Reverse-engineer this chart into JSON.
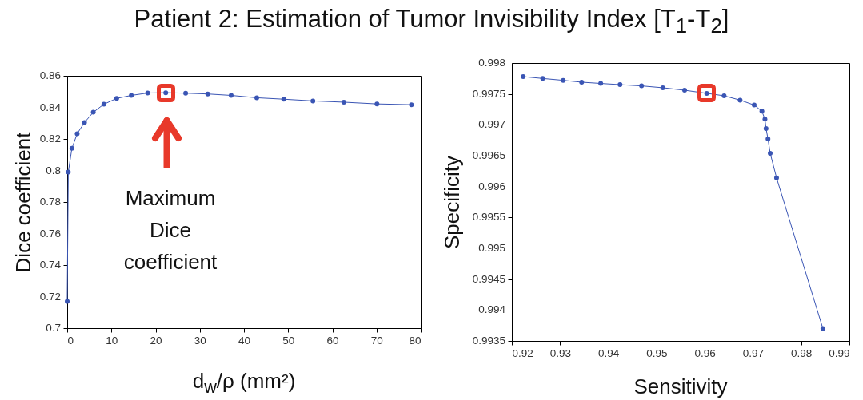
{
  "chart_data": [
    {
      "type": "line",
      "title": "Patient 2: Estimation of Tumor Invisibility Index [T$_{1}$-T$_{2}$]",
      "xlabel": "d$_{w}$/ρ (mm²)",
      "ylabel": "Dice coefficient",
      "marker": "circle",
      "legend": false,
      "grid": false,
      "xlim": [
        0,
        80
      ],
      "xticks": [
        0,
        10,
        20,
        30,
        40,
        50,
        60,
        70,
        80
      ],
      "ylim": [
        0.7,
        0.86
      ],
      "yticks": [
        0.7,
        0.72,
        0.74,
        0.76,
        0.78,
        0.8,
        0.82,
        0.84,
        0.86
      ],
      "annotations": [
        "Maximum Dice coefficient"
      ],
      "series": [
        {
          "color": "#3a55b4",
          "x": [
            0,
            0.25,
            1.06,
            2.25,
            3.9,
            5.9,
            8.3,
            11.2,
            14.5,
            18.2,
            22.3,
            26.8,
            31.8,
            37.1,
            42.9,
            49.0,
            55.6,
            62.6,
            70.1,
            77.9
          ],
          "values": [
            0.717,
            0.799,
            0.814,
            0.8233,
            0.8304,
            0.8369,
            0.842,
            0.8457,
            0.8476,
            0.8491,
            0.8493,
            0.849,
            0.8485,
            0.8476,
            0.8461,
            0.8452,
            0.8441,
            0.8433,
            0.8422,
            0.8417
          ]
        }
      ]
    },
    {
      "type": "line",
      "xlabel": "Sensitivity",
      "ylabel": "Specificity",
      "marker": "circle",
      "legend": false,
      "grid": false,
      "xlim": [
        0.92,
        0.99
      ],
      "xticks": [
        0.92,
        0.93,
        0.94,
        0.95,
        0.96,
        0.97,
        0.98,
        0.99
      ],
      "ylim": [
        0.9935,
        0.998
      ],
      "yticks": [
        0.9935,
        0.994,
        0.9945,
        0.995,
        0.9955,
        0.996,
        0.9965,
        0.997,
        0.9975,
        0.998
      ],
      "series": [
        {
          "color": "#3a55b4",
          "x": [
            0.92235,
            0.92641,
            0.93065,
            0.93448,
            0.93843,
            0.94244,
            0.9469,
            0.95131,
            0.95583,
            0.96041,
            0.96402,
            0.96734,
            0.97026,
            0.97186,
            0.97249,
            0.97272,
            0.97312,
            0.97358,
            0.9749,
            0.98451
          ],
          "values": [
            0.99778,
            0.99775,
            0.99772,
            0.99769,
            0.99767,
            0.99765,
            0.99763,
            0.9976,
            0.99756,
            0.99751,
            0.99747,
            0.9974,
            0.99732,
            0.99722,
            0.99709,
            0.99694,
            0.99677,
            0.99654,
            0.99614,
            0.9937
          ]
        }
      ]
    }
  ]
}
